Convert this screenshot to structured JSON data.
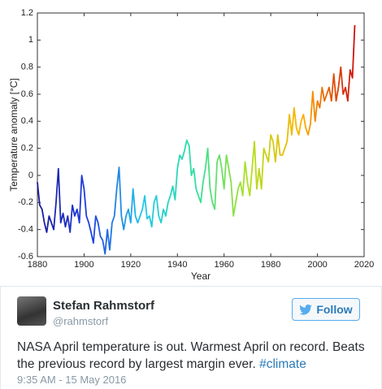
{
  "chart_data": {
    "type": "line",
    "xlabel": "Year",
    "ylabel": "Temperature anomaly [°C]",
    "x": [
      1880,
      1881,
      1882,
      1883,
      1884,
      1885,
      1886,
      1887,
      1888,
      1889,
      1890,
      1891,
      1892,
      1893,
      1894,
      1895,
      1896,
      1897,
      1898,
      1899,
      1900,
      1901,
      1902,
      1903,
      1904,
      1905,
      1906,
      1907,
      1908,
      1909,
      1910,
      1911,
      1912,
      1913,
      1914,
      1915,
      1916,
      1917,
      1918,
      1919,
      1920,
      1921,
      1922,
      1923,
      1924,
      1925,
      1926,
      1927,
      1928,
      1929,
      1930,
      1931,
      1932,
      1933,
      1934,
      1935,
      1936,
      1937,
      1938,
      1939,
      1940,
      1941,
      1942,
      1943,
      1944,
      1945,
      1946,
      1947,
      1948,
      1949,
      1950,
      1951,
      1952,
      1953,
      1954,
      1955,
      1956,
      1957,
      1958,
      1959,
      1960,
      1961,
      1962,
      1963,
      1964,
      1965,
      1966,
      1967,
      1968,
      1969,
      1970,
      1971,
      1972,
      1973,
      1974,
      1975,
      1976,
      1977,
      1978,
      1979,
      1980,
      1981,
      1982,
      1983,
      1984,
      1985,
      1986,
      1987,
      1988,
      1989,
      1990,
      1991,
      1992,
      1993,
      1994,
      1995,
      1996,
      1997,
      1998,
      1999,
      2000,
      2001,
      2002,
      2003,
      2004,
      2005,
      2006,
      2007,
      2008,
      2009,
      2010,
      2011,
      2012,
      2013,
      2014,
      2015,
      2016
    ],
    "values": [
      -0.05,
      -0.22,
      -0.25,
      -0.35,
      -0.42,
      -0.3,
      -0.35,
      -0.4,
      -0.2,
      0.05,
      -0.35,
      -0.28,
      -0.38,
      -0.3,
      -0.42,
      -0.22,
      -0.3,
      -0.25,
      -0.35,
      0.0,
      -0.1,
      -0.3,
      -0.35,
      -0.42,
      -0.5,
      -0.3,
      -0.35,
      -0.45,
      -0.48,
      -0.58,
      -0.4,
      -0.55,
      -0.35,
      -0.3,
      -0.1,
      0.06,
      -0.3,
      -0.4,
      -0.3,
      -0.25,
      -0.35,
      -0.1,
      -0.3,
      -0.35,
      -0.3,
      -0.25,
      -0.15,
      -0.32,
      -0.3,
      -0.38,
      -0.2,
      -0.15,
      -0.3,
      -0.35,
      -0.25,
      -0.3,
      -0.2,
      -0.15,
      -0.08,
      -0.18,
      0.05,
      0.15,
      0.12,
      0.18,
      0.26,
      0.22,
      0.0,
      0.05,
      -0.1,
      -0.15,
      -0.2,
      -0.05,
      0.05,
      0.2,
      -0.1,
      -0.2,
      -0.25,
      0.1,
      0.15,
      0.05,
      -0.1,
      0.15,
      0.05,
      -0.05,
      -0.3,
      -0.2,
      -0.1,
      -0.05,
      -0.15,
      0.1,
      -0.05,
      -0.15,
      0.05,
      0.25,
      -0.1,
      0.05,
      -0.1,
      0.2,
      0.15,
      0.1,
      0.3,
      0.25,
      0.1,
      0.3,
      0.15,
      0.15,
      0.2,
      0.25,
      0.45,
      0.3,
      0.5,
      0.35,
      0.3,
      0.4,
      0.45,
      0.35,
      0.3,
      0.38,
      0.62,
      0.4,
      0.55,
      0.5,
      0.65,
      0.55,
      0.6,
      0.65,
      0.55,
      0.75,
      0.55,
      0.65,
      0.8,
      0.6,
      0.65,
      0.55,
      0.78,
      0.72,
      1.11
    ],
    "colormap": [
      "#1a1a9a",
      "#2040e0",
      "#20c8e8",
      "#30e0a0",
      "#b0e020",
      "#ffb000",
      "#cc1010"
    ],
    "xlim": [
      1880,
      2020
    ],
    "xticks": [
      1880,
      1900,
      1920,
      1940,
      1960,
      1980,
      2000,
      2020
    ],
    "ylim": [
      -0.6,
      1.2
    ],
    "yticks": [
      -0.6,
      -0.4,
      -0.2,
      0,
      0.2,
      0.4,
      0.6,
      0.8,
      1,
      1.2
    ]
  },
  "tweet": {
    "name": "Stefan Rahmstorf",
    "handle": "@rahmstorf",
    "button": "Follow",
    "text": "NASA April temperature is out. Warmest April on record. Beats the previous record by largest margin ever.",
    "hashtag": "#climate",
    "time": "9:35 AM - 15 May 2016"
  }
}
